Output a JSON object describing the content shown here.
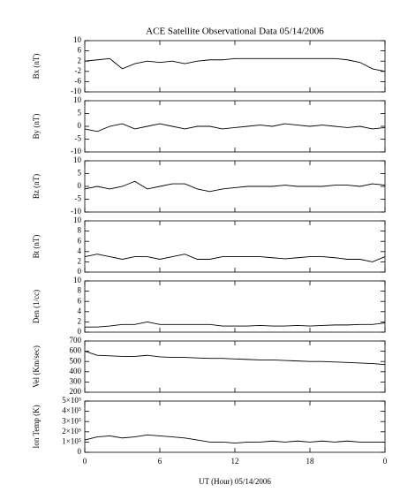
{
  "chart_data": [
    {
      "type": "line",
      "title": "ACE Satellite Observational Data   05/14/2006",
      "ylabel": "Bx (nT)",
      "color": "#000000",
      "x": [
        0,
        1,
        2,
        3,
        4,
        5,
        6,
        7,
        8,
        9,
        10,
        11,
        12,
        13,
        14,
        15,
        16,
        17,
        18,
        19,
        20,
        21,
        22,
        23,
        24
      ],
      "values": [
        2,
        2.5,
        3,
        -1,
        1,
        2,
        1.5,
        2,
        1,
        2,
        2.5,
        2.5,
        3,
        3,
        3,
        3,
        3,
        3,
        3,
        3,
        3,
        2.5,
        1.5,
        -1,
        -2
      ],
      "xlim": [
        0,
        24
      ],
      "ylim": [
        -10,
        10
      ],
      "yticks": [
        -10,
        -6,
        -2,
        2,
        6,
        10
      ]
    },
    {
      "type": "line",
      "ylabel": "By (nT)",
      "color": "#000000",
      "x": [
        0,
        1,
        2,
        3,
        4,
        5,
        6,
        7,
        8,
        9,
        10,
        11,
        12,
        13,
        14,
        15,
        16,
        17,
        18,
        19,
        20,
        21,
        22,
        23,
        24
      ],
      "values": [
        -1,
        -2,
        0,
        1,
        -1,
        0,
        1,
        0,
        -1,
        0,
        0,
        -1,
        -0.5,
        0,
        0.5,
        0,
        1,
        0.5,
        0,
        0.5,
        0,
        -0.5,
        0,
        -1,
        -0.5
      ],
      "xlim": [
        0,
        24
      ],
      "ylim": [
        -10,
        10
      ],
      "yticks": [
        -10,
        -5,
        0,
        5,
        10
      ]
    },
    {
      "type": "line",
      "ylabel": "Bz (nT)",
      "color": "#000000",
      "x": [
        0,
        1,
        2,
        3,
        4,
        5,
        6,
        7,
        8,
        9,
        10,
        11,
        12,
        13,
        14,
        15,
        16,
        17,
        18,
        19,
        20,
        21,
        22,
        23,
        24
      ],
      "values": [
        -1,
        0,
        -1,
        0,
        2,
        -1,
        0,
        1,
        1,
        -1,
        -2,
        -1,
        -0.5,
        0,
        0,
        0,
        0.5,
        0,
        0,
        0,
        0.5,
        0.5,
        0,
        1,
        0.5
      ],
      "xlim": [
        0,
        24
      ],
      "ylim": [
        -10,
        10
      ],
      "yticks": [
        -10,
        -5,
        0,
        5,
        10
      ]
    },
    {
      "type": "line",
      "ylabel": "Bt (nT)",
      "color": "#000000",
      "x": [
        0,
        1,
        2,
        3,
        4,
        5,
        6,
        7,
        8,
        9,
        10,
        11,
        12,
        13,
        14,
        15,
        16,
        17,
        18,
        19,
        20,
        21,
        22,
        23,
        24
      ],
      "values": [
        3,
        3.5,
        3,
        2.5,
        3,
        3,
        2.5,
        3,
        3.5,
        2.5,
        2.5,
        3,
        3,
        3,
        3,
        2.8,
        2.6,
        2.8,
        3,
        3,
        2.8,
        2.5,
        2.5,
        2,
        3
      ],
      "xlim": [
        0,
        24
      ],
      "ylim": [
        0,
        10
      ],
      "yticks": [
        0,
        2,
        4,
        6,
        8,
        10
      ]
    },
    {
      "type": "line",
      "ylabel": "Den (1/cc)",
      "color": "#000000",
      "x": [
        0,
        1,
        2,
        3,
        4,
        5,
        6,
        7,
        8,
        9,
        10,
        11,
        12,
        13,
        14,
        15,
        16,
        17,
        18,
        19,
        20,
        21,
        22,
        23,
        24
      ],
      "values": [
        1,
        1,
        1.2,
        1.5,
        1.5,
        2,
        1.5,
        1.5,
        1.5,
        1.5,
        1.5,
        1.2,
        1.2,
        1.2,
        1.3,
        1.2,
        1.2,
        1.3,
        1.2,
        1.3,
        1.4,
        1.4,
        1.5,
        1.5,
        1.8
      ],
      "xlim": [
        0,
        24
      ],
      "ylim": [
        0,
        10
      ],
      "yticks": [
        0,
        2,
        4,
        6,
        8,
        10
      ]
    },
    {
      "type": "line",
      "ylabel": "Vel (Km/sec)",
      "color": "#000000",
      "x": [
        0,
        1,
        2,
        3,
        4,
        5,
        6,
        7,
        8,
        9,
        10,
        11,
        12,
        13,
        14,
        15,
        16,
        17,
        18,
        19,
        20,
        21,
        22,
        23,
        24
      ],
      "values": [
        600,
        560,
        555,
        550,
        550,
        560,
        545,
        540,
        540,
        535,
        530,
        530,
        525,
        520,
        515,
        515,
        510,
        505,
        500,
        500,
        495,
        490,
        485,
        480,
        470
      ],
      "xlim": [
        0,
        24
      ],
      "ylim": [
        200,
        700
      ],
      "yticks": [
        200,
        300,
        400,
        500,
        600,
        700
      ]
    },
    {
      "type": "line",
      "ylabel": "Ion Temp (K)",
      "xlabel": "UT (Hour)  05/14/2006",
      "color": "#000000",
      "x": [
        0,
        1,
        2,
        3,
        4,
        5,
        6,
        7,
        8,
        9,
        10,
        11,
        12,
        13,
        14,
        15,
        16,
        17,
        18,
        19,
        20,
        21,
        22,
        23,
        24
      ],
      "values": [
        120000,
        150000,
        160000,
        140000,
        150000,
        170000,
        160000,
        150000,
        140000,
        120000,
        100000,
        100000,
        90000,
        100000,
        100000,
        110000,
        100000,
        110000,
        100000,
        110000,
        100000,
        110000,
        100000,
        100000,
        100000
      ],
      "xlim": [
        0,
        24
      ],
      "ylim": [
        0,
        500000
      ],
      "yticks": [
        0,
        {
          "value": 100000,
          "label": "1×10⁵"
        },
        {
          "value": 200000,
          "label": "2×10⁵"
        },
        {
          "value": 300000,
          "label": "3×10⁵"
        },
        {
          "value": 400000,
          "label": "4×10⁵"
        },
        {
          "value": 500000,
          "label": "5×10⁵"
        }
      ],
      "xticks": [
        0,
        6,
        12,
        18,
        {
          "value": 24,
          "label": "0"
        }
      ]
    }
  ]
}
